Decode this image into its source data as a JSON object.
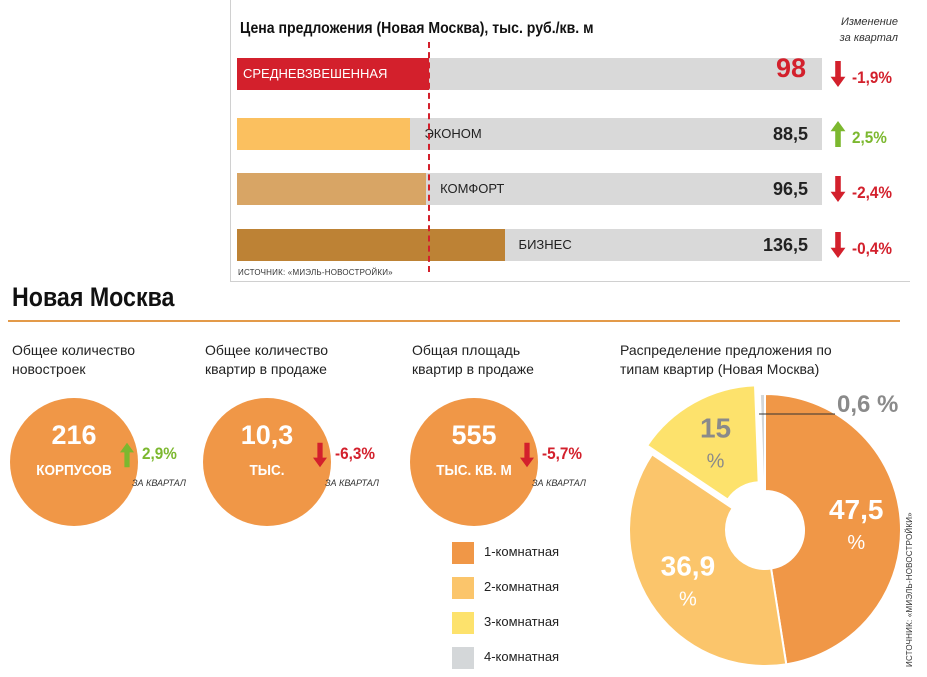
{
  "price_panel": {
    "title": "Цена предложения (Новая Москва), тыс. руб./кв. м",
    "change_header": [
      "Изменение",
      "за квартал"
    ],
    "source": "ИСТОЧНИК: «МИЭЛЬ-НОВОСТРОЙКИ»"
  },
  "section": {
    "title": "Новая Москва"
  },
  "stats": [
    {
      "label": "Общее количество новостроек",
      "value": "216",
      "unit": "КОРПУСОВ",
      "change": "2,9%",
      "direction": "up",
      "period": "ЗА КВАРТАЛ"
    },
    {
      "label": "Общее количество квартир в продаже",
      "value": "10,3",
      "unit": "ТЫС.",
      "change": "-6,3%",
      "direction": "down",
      "period": "ЗА КВАРТАЛ"
    },
    {
      "label": "Общая площадь квартир в продаже",
      "value": "555",
      "unit": "ТЫС. КВ. М",
      "change": "-5,7%",
      "direction": "down",
      "period": "ЗА КВАРТАЛ"
    }
  ],
  "colors": {
    "red": "#d3202c",
    "green": "#7cb82f",
    "orange": "#f09747",
    "bar_econom": "#fbc05f",
    "bar_comfort": "#d8a565",
    "bar_business": "#bd8235",
    "track": "#d9d9d9"
  },
  "chart_data": [
    {
      "type": "bar",
      "title": "Цена предложения (Новая Москва), тыс. руб./кв. м",
      "categories": [
        "СРЕДНЕВЗВЕШЕННАЯ",
        "ЭКОНОМ",
        "КОМФОРТ",
        "БИЗНЕС"
      ],
      "values": [
        98,
        88.5,
        96.5,
        136.5
      ],
      "value_labels": [
        "98",
        "88,5",
        "96,5",
        "136,5"
      ],
      "changes": [
        "-1,9%",
        "2,5%",
        "-2,4%",
        "-0,4%"
      ],
      "directions": [
        "down",
        "up",
        "down",
        "down"
      ],
      "reference_line": 98,
      "xlim": [
        0,
        300
      ]
    },
    {
      "type": "pie",
      "title": "Распределение предложения по типам квартир (Новая Москва)",
      "series": [
        {
          "name": "1-комнатная",
          "value": 47.5,
          "label": "47,5",
          "color": "#f09747"
        },
        {
          "name": "2-комнатная",
          "value": 36.9,
          "label": "36,9",
          "color": "#fbc56b"
        },
        {
          "name": "3-комнатная",
          "value": 15,
          "label": "15",
          "color": "#fde26c"
        },
        {
          "name": "4-комнатная",
          "value": 0.6,
          "label": "0,6",
          "color": "#d4d7d9"
        }
      ],
      "unit": "%",
      "source": "ИСТОЧНИК: «МИЭЛЬ-НОВОСТРОЙКИ»"
    }
  ]
}
